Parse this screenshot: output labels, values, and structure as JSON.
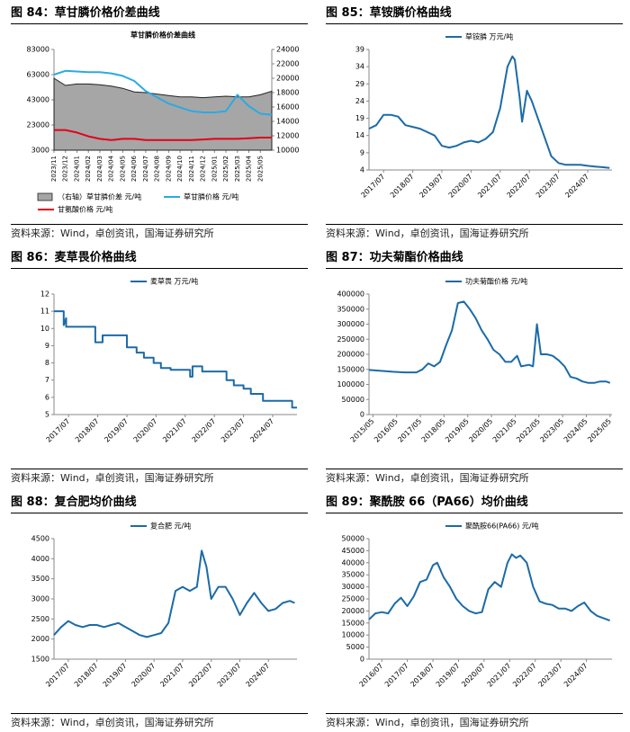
{
  "chart_data": [
    {
      "type": "line",
      "figure_title": "图 84：草甘膦价格价差曲线",
      "title": "草甘膦价格价差曲线",
      "source": "资料来源：Wind，卓创资讯，国海证券研究所",
      "x": [
        "2023/11",
        "2023/12",
        "2024/01",
        "2024/02",
        "2024/03",
        "2024/04",
        "2024/05",
        "2024/06",
        "2024/07",
        "2024/08",
        "2024/09",
        "2024/10",
        "2024/11",
        "2024/12",
        "2025/01",
        "2025/02",
        "2025/03",
        "2025/04",
        "2025/05",
        "2025/06"
      ],
      "xlim": [
        "2023/11",
        "2025/06"
      ],
      "xticks": [
        "2023/11",
        "2023/12",
        "2024/01",
        "2024/02",
        "2024/03",
        "2024/04",
        "2024/05",
        "2024/06",
        "2024/07",
        "2024/08",
        "2024/09",
        "2024/10",
        "2024/11",
        "2024/12",
        "2025/01",
        "2025/02",
        "2025/03",
        "2025/04",
        "2025/05"
      ],
      "ylim": [
        3000,
        83000
      ],
      "yticks": [
        3000,
        23000,
        43000,
        63000,
        83000
      ],
      "y2lim": [
        10000,
        24000
      ],
      "y2ticks": [
        10000,
        12000,
        14000,
        16000,
        18000,
        20000,
        22000,
        24000
      ],
      "series": [
        {
          "name": "（右轴）草甘膦价差 元/吨",
          "type": "area",
          "axis": "y2",
          "color": "#a6a6a6",
          "values": [
            20000,
            19000,
            19200,
            19200,
            19100,
            18900,
            18600,
            18100,
            18000,
            17800,
            17600,
            17400,
            17400,
            17300,
            17400,
            17500,
            17400,
            17400,
            17700,
            18200
          ]
        },
        {
          "name": "草甘膦价格 元/吨",
          "color": "#29abe2",
          "values": [
            63000,
            66000,
            65500,
            65000,
            65000,
            64000,
            62000,
            58000,
            50000,
            45000,
            40000,
            37000,
            34000,
            33000,
            33000,
            34000,
            47000,
            38000,
            32000,
            31000
          ]
        },
        {
          "name": "甘氨酸价格 元/吨",
          "color": "#e3001b",
          "values": [
            19000,
            19000,
            17000,
            14000,
            12000,
            11000,
            12000,
            12000,
            11000,
            11000,
            11000,
            11000,
            11000,
            11500,
            12000,
            12000,
            12000,
            12500,
            13000,
            13000
          ]
        }
      ]
    },
    {
      "type": "line",
      "figure_title": "图 85：草铵膦价格曲线",
      "source": "资料来源：Wind，卓创资讯，国海证券研究所",
      "x": [
        "2017/01",
        "2017/04",
        "2017/07",
        "2017/10",
        "2018/01",
        "2018/04",
        "2018/07",
        "2018/10",
        "2019/01",
        "2019/04",
        "2019/07",
        "2019/10",
        "2020/01",
        "2020/04",
        "2020/07",
        "2020/10",
        "2021/01",
        "2021/04",
        "2021/07",
        "2021/10",
        "2021/12",
        "2022/01",
        "2022/03",
        "2022/04",
        "2022/06",
        "2022/08",
        "2022/10",
        "2023/01",
        "2023/04",
        "2023/07",
        "2023/10",
        "2024/01",
        "2024/04",
        "2024/07",
        "2024/10",
        "2025/01",
        "2025/04"
      ],
      "xlim": [
        "2017/01",
        "2025/05"
      ],
      "xticks": [
        "2017/07",
        "2018/07",
        "2019/07",
        "2020/07",
        "2021/07",
        "2022/07",
        "2023/07",
        "2024/07"
      ],
      "ylim": [
        4,
        39
      ],
      "yticks": [
        4,
        9,
        14,
        19,
        24,
        29,
        34,
        39
      ],
      "series": [
        {
          "name": "草铵膦  万元/吨",
          "color": "#1b6ba8",
          "values": [
            16,
            17,
            20,
            20,
            19.5,
            17,
            16.5,
            16,
            15,
            14,
            11,
            10.5,
            11,
            12,
            12.5,
            12,
            13,
            15,
            22,
            34,
            37,
            36,
            25,
            18,
            27,
            24,
            20,
            14,
            8,
            6,
            5.5,
            5.5,
            5.5,
            5.2,
            5,
            4.8,
            4.6
          ]
        }
      ]
    },
    {
      "type": "line",
      "figure_title": "图 86：麦草畏价格曲线",
      "source": "资料来源：Wind，卓创资讯，国海证券研究所",
      "x": [
        "2017/01",
        "2017/05",
        "2017/05",
        "2017/06",
        "2017/06",
        "2018/06",
        "2018/06",
        "2018/09",
        "2018/09",
        "2019/07",
        "2019/07",
        "2019/11",
        "2019/11",
        "2020/02",
        "2020/02",
        "2020/06",
        "2020/06",
        "2020/09",
        "2020/09",
        "2021/01",
        "2021/01",
        "2021/09",
        "2021/09",
        "2021/10",
        "2021/10",
        "2022/02",
        "2022/02",
        "2022/12",
        "2022/12",
        "2023/03",
        "2023/03",
        "2023/07",
        "2023/07",
        "2023/10",
        "2023/10",
        "2024/03",
        "2024/03",
        "2025/03",
        "2025/03",
        "2025/05"
      ],
      "xlim": [
        "2017/01",
        "2025/05"
      ],
      "xticks": [
        "2017/07",
        "2018/07",
        "2019/07",
        "2020/07",
        "2021/07",
        "2022/07",
        "2023/07",
        "2024/07"
      ],
      "ylim": [
        5,
        12
      ],
      "yticks": [
        5,
        6,
        7,
        8,
        9,
        10,
        11,
        12
      ],
      "series": [
        {
          "name": "麦草畏  万元/吨",
          "color": "#1b6ba8",
          "values": [
            11,
            11,
            10.2,
            10.6,
            10.1,
            10.1,
            9.2,
            9.2,
            9.6,
            9.6,
            8.9,
            8.9,
            8.6,
            8.6,
            8.3,
            8.3,
            8.0,
            8.0,
            7.7,
            7.7,
            7.6,
            7.6,
            7.2,
            7.2,
            7.8,
            7.8,
            7.5,
            7.5,
            7.0,
            7.0,
            6.7,
            6.7,
            6.5,
            6.5,
            6.2,
            6.2,
            5.8,
            5.8,
            5.4,
            5.4
          ]
        }
      ]
    },
    {
      "type": "line",
      "figure_title": "图 87：功夫菊酯价格曲线",
      "source": "资料来源：Wind，卓创资讯，国海证券研究所",
      "x": [
        "2015/03",
        "2015/09",
        "2016/03",
        "2016/09",
        "2017/03",
        "2017/06",
        "2017/09",
        "2017/12",
        "2018/03",
        "2018/06",
        "2018/09",
        "2018/12",
        "2019/03",
        "2019/06",
        "2019/09",
        "2019/12",
        "2020/03",
        "2020/06",
        "2020/09",
        "2020/12",
        "2021/03",
        "2021/06",
        "2021/08",
        "2021/12",
        "2022/02",
        "2022/04",
        "2022/06",
        "2022/09",
        "2022/12",
        "2023/03",
        "2023/06",
        "2023/09",
        "2023/12",
        "2024/03",
        "2024/06",
        "2024/09",
        "2024/12",
        "2025/03",
        "2025/05"
      ],
      "xlim": [
        "2015/03",
        "2025/06"
      ],
      "xticks": [
        "2015/05",
        "2016/05",
        "2017/05",
        "2018/05",
        "2019/05",
        "2020/05",
        "2021/05",
        "2022/05",
        "2023/05",
        "2024/05",
        "2025/05"
      ],
      "ylim": [
        0,
        400000
      ],
      "yticks": [
        0,
        50000,
        100000,
        150000,
        200000,
        250000,
        300000,
        350000,
        400000
      ],
      "series": [
        {
          "name": "功夫菊酯价格  元/吨",
          "color": "#1b6ba8",
          "values": [
            148000,
            145000,
            142000,
            140000,
            140000,
            150000,
            170000,
            160000,
            175000,
            230000,
            280000,
            370000,
            375000,
            350000,
            320000,
            280000,
            250000,
            215000,
            200000,
            175000,
            175000,
            195000,
            160000,
            165000,
            160000,
            300000,
            200000,
            200000,
            195000,
            180000,
            160000,
            125000,
            120000,
            110000,
            105000,
            105000,
            110000,
            110000,
            105000
          ]
        }
      ]
    },
    {
      "type": "line",
      "figure_title": "图 88：复合肥均价曲线",
      "source": "资料来源：Wind，卓创资讯，国海证券研究所",
      "x": [
        "2017/01",
        "2017/04",
        "2017/07",
        "2017/10",
        "2018/01",
        "2018/04",
        "2018/07",
        "2018/10",
        "2019/01",
        "2019/04",
        "2019/07",
        "2019/10",
        "2020/01",
        "2020/04",
        "2020/07",
        "2020/10",
        "2021/01",
        "2021/04",
        "2021/07",
        "2021/10",
        "2022/01",
        "2022/03",
        "2022/05",
        "2022/07",
        "2022/10",
        "2023/01",
        "2023/04",
        "2023/07",
        "2023/10",
        "2024/01",
        "2024/04",
        "2024/07",
        "2024/10",
        "2025/01",
        "2025/04",
        "2025/06"
      ],
      "xlim": [
        "2017/01",
        "2025/07"
      ],
      "xticks": [
        "2017/07",
        "2018/07",
        "2019/07",
        "2020/07",
        "2021/07",
        "2022/07",
        "2023/07",
        "2024/07"
      ],
      "ylim": [
        1500,
        4500
      ],
      "yticks": [
        1500,
        2000,
        2500,
        3000,
        3500,
        4000,
        4500
      ],
      "series": [
        {
          "name": "复合肥  元/吨",
          "color": "#1b6ba8",
          "values": [
            2100,
            2300,
            2450,
            2350,
            2300,
            2350,
            2350,
            2300,
            2350,
            2400,
            2300,
            2200,
            2100,
            2050,
            2100,
            2150,
            2400,
            3200,
            3300,
            3200,
            3300,
            4200,
            3800,
            3000,
            3300,
            3300,
            3000,
            2600,
            2900,
            3150,
            2900,
            2700,
            2750,
            2900,
            2950,
            2900
          ]
        }
      ]
    },
    {
      "type": "line",
      "figure_title": "图 89：聚酰胺 66（PA66）均价曲线",
      "source": "资料来源：Wind，卓创资讯，国海证券研究所",
      "x": [
        "2016/01",
        "2016/04",
        "2016/07",
        "2016/10",
        "2017/01",
        "2017/04",
        "2017/07",
        "2017/10",
        "2018/01",
        "2018/04",
        "2018/07",
        "2018/09",
        "2018/12",
        "2019/03",
        "2019/06",
        "2019/09",
        "2019/12",
        "2020/03",
        "2020/06",
        "2020/09",
        "2020/12",
        "2021/03",
        "2021/06",
        "2021/08",
        "2021/10",
        "2021/12",
        "2022/03",
        "2022/06",
        "2022/09",
        "2022/12",
        "2023/03",
        "2023/06",
        "2023/09",
        "2023/12",
        "2024/03",
        "2024/06",
        "2024/09",
        "2024/12",
        "2025/03",
        "2025/06"
      ],
      "xlim": [
        "2016/01",
        "2025/07"
      ],
      "xticks": [
        "2016/07",
        "2017/07",
        "2018/07",
        "2019/07",
        "2020/07",
        "2021/07",
        "2022/07",
        "2023/07",
        "2024/07"
      ],
      "ylim": [
        0,
        50000
      ],
      "yticks": [
        0,
        5000,
        10000,
        15000,
        20000,
        25000,
        30000,
        35000,
        40000,
        45000,
        50000
      ],
      "series": [
        {
          "name": "聚酰胺66(PA66)  元/吨",
          "color": "#1b6ba8",
          "values": [
            16500,
            19000,
            19500,
            19000,
            23000,
            25500,
            22000,
            26000,
            32000,
            33000,
            39000,
            40000,
            34000,
            30000,
            25000,
            22000,
            20000,
            19000,
            19500,
            29000,
            32000,
            30000,
            40000,
            43500,
            42000,
            43000,
            40000,
            30000,
            24000,
            23000,
            22500,
            21000,
            21000,
            20000,
            22000,
            23500,
            20000,
            18000,
            17000,
            16000
          ]
        }
      ]
    }
  ]
}
